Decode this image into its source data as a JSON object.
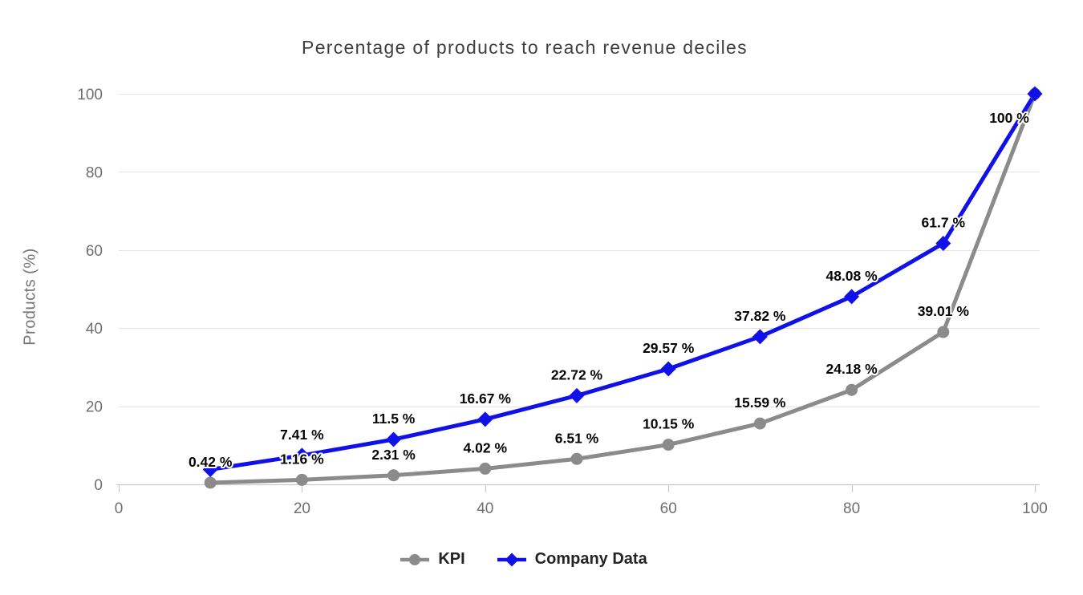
{
  "chart_data": {
    "type": "line",
    "title": "Percentage of products to reach revenue deciles",
    "xlabel": "",
    "ylabel": "Products (%)",
    "xlim": [
      0,
      100
    ],
    "ylim": [
      0,
      100
    ],
    "xticks": [
      0,
      20,
      40,
      60,
      80,
      100
    ],
    "yticks": [
      0,
      20,
      40,
      60,
      80,
      100
    ],
    "grid": "horizontal",
    "legend_position": "bottom",
    "x": [
      10,
      20,
      30,
      40,
      50,
      60,
      70,
      80,
      90,
      100
    ],
    "series": [
      {
        "name": "KPI",
        "color": "#8b8b8b",
        "marker": "circle",
        "values": [
          0.42,
          1.16,
          2.31,
          4.02,
          6.51,
          10.15,
          15.59,
          24.18,
          39.01,
          100
        ],
        "labels": [
          "0.42 %",
          "1.16 %",
          "2.31 %",
          "4.02 %",
          "6.51 %",
          "10.15 %",
          "15.59 %",
          "24.18 %",
          "39.01 %",
          null
        ]
      },
      {
        "name": "Company Data",
        "color": "#1010e8",
        "marker": "diamond",
        "values": [
          3.8,
          7.41,
          11.5,
          16.67,
          22.72,
          29.57,
          37.82,
          48.08,
          61.7,
          100
        ],
        "labels": [
          null,
          "7.41 %",
          "11.5 %",
          "16.67 %",
          "22.72 %",
          "29.57 %",
          "37.82 %",
          "48.08 %",
          "61.7 %",
          "100 %"
        ]
      }
    ],
    "colors": {
      "title": "#3f3f3f",
      "axis_text": "#6f6f6f",
      "gridline": "#e4e4e8",
      "axis_line": "#c9c9cf",
      "data_label": "#060606",
      "legend_text": "#242424",
      "background": "#ffffff"
    }
  }
}
